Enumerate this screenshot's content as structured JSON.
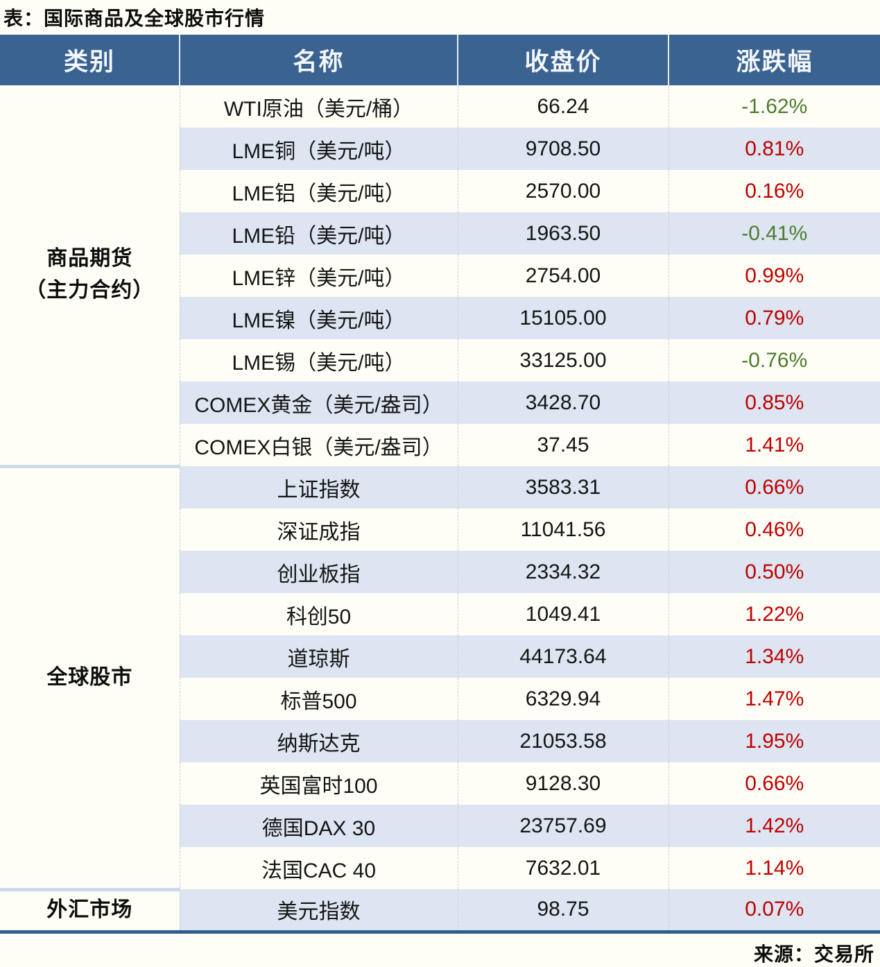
{
  "chart_data": {
    "type": "table",
    "title": "表：国际商品及全球股市行情",
    "source": "来源：交易所",
    "columns": [
      "类别",
      "名称",
      "收盘价",
      "涨跌幅"
    ],
    "groups": [
      {
        "category_lines": [
          "商品期货",
          "（主力合约）"
        ],
        "rows": [
          {
            "name": "WTI原油（美元/桶）",
            "close": "66.24",
            "change": "-1.62%"
          },
          {
            "name": "LME铜（美元/吨）",
            "close": "9708.50",
            "change": "0.81%"
          },
          {
            "name": "LME铝（美元/吨）",
            "close": "2570.00",
            "change": "0.16%"
          },
          {
            "name": "LME铅（美元/吨）",
            "close": "1963.50",
            "change": "-0.41%"
          },
          {
            "name": "LME锌（美元/吨）",
            "close": "2754.00",
            "change": "0.99%"
          },
          {
            "name": "LME镍（美元/吨）",
            "close": "15105.00",
            "change": "0.79%"
          },
          {
            "name": "LME锡（美元/吨）",
            "close": "33125.00",
            "change": "-0.76%"
          },
          {
            "name": "COMEX黄金（美元/盎司）",
            "close": "3428.70",
            "change": "0.85%"
          },
          {
            "name": "COMEX白银（美元/盎司）",
            "close": "37.45",
            "change": "1.41%"
          }
        ]
      },
      {
        "category_lines": [
          "全球股市"
        ],
        "rows": [
          {
            "name": "上证指数",
            "close": "3583.31",
            "change": "0.66%"
          },
          {
            "name": "深证成指",
            "close": "11041.56",
            "change": "0.46%"
          },
          {
            "name": "创业板指",
            "close": "2334.32",
            "change": "0.50%"
          },
          {
            "name": "科创50",
            "close": "1049.41",
            "change": "1.22%"
          },
          {
            "name": "道琼斯",
            "close": "44173.64",
            "change": "1.34%"
          },
          {
            "name": "标普500",
            "close": "6329.94",
            "change": "1.47%"
          },
          {
            "name": "纳斯达克",
            "close": "21053.58",
            "change": "1.95%"
          },
          {
            "name": "英国富时100",
            "close": "9128.30",
            "change": "0.66%"
          },
          {
            "name": "德国DAX 30",
            "close": "23757.69",
            "change": "1.42%"
          },
          {
            "name": "法国CAC 40",
            "close": "7632.01",
            "change": "1.14%"
          }
        ]
      },
      {
        "category_lines": [
          "外汇市场"
        ],
        "rows": [
          {
            "name": "美元指数",
            "close": "98.75",
            "change": "0.07%"
          }
        ]
      }
    ]
  },
  "colors": {
    "positive_change": "#C00000",
    "negative_change": "#4E7B2F",
    "header_bg": "#3A6392",
    "row_stripe": "#DCE5F1",
    "group_separator": "#CBD9EB",
    "table_bottom_border": "#2F5D8E",
    "page_bg": "#FEFEF6"
  }
}
